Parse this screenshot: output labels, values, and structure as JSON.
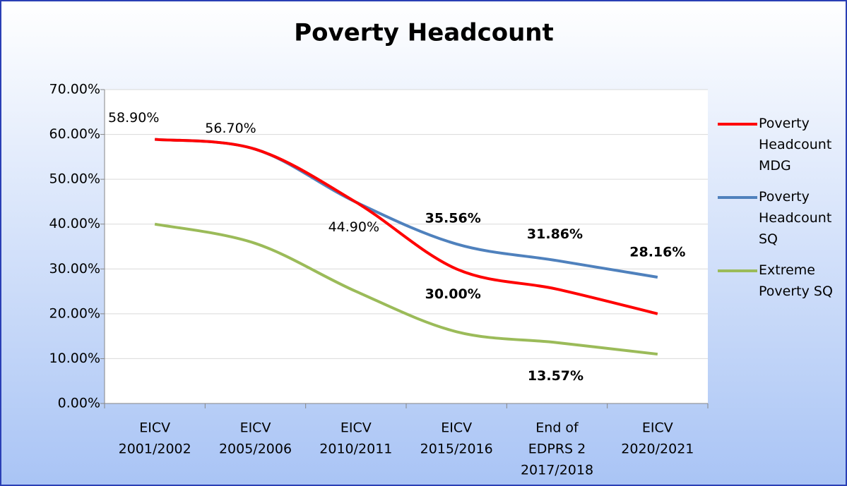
{
  "chart_data": {
    "type": "line",
    "title": "Poverty Headcount",
    "categories": [
      [
        "EICV",
        "2001/2002"
      ],
      [
        "EICV",
        "2005/2006"
      ],
      [
        "EICV",
        "2010/2011"
      ],
      [
        "EICV",
        "2015/2016"
      ],
      [
        "End of",
        "EDPRS 2",
        "2017/2018"
      ],
      [
        "EICV",
        "2020/2021"
      ]
    ],
    "series": [
      {
        "name": "Poverty Headcount MDG",
        "color": "#ff0000",
        "values": [
          58.9,
          56.7,
          44.9,
          30.0,
          25.5,
          20.0
        ],
        "value_labels": [
          "58.90%",
          "56.70%",
          "44.90%",
          "30.00%",
          null,
          null
        ]
      },
      {
        "name": "Poverty Headcount SQ",
        "color": "#4f81bd",
        "values": [
          58.9,
          56.7,
          44.9,
          35.56,
          31.86,
          28.16
        ],
        "value_labels": [
          null,
          null,
          null,
          "35.56%",
          "31.86%",
          "28.16%"
        ]
      },
      {
        "name": "Extreme Poverty SQ",
        "color": "#9bbb59",
        "values": [
          40.0,
          35.7,
          25.0,
          16.0,
          13.57,
          11.0
        ],
        "value_labels": [
          null,
          null,
          null,
          null,
          "13.57%",
          null
        ]
      }
    ],
    "ylim": [
      0,
      70
    ],
    "yticks": [
      {
        "value": 0,
        "label": "0.00%"
      },
      {
        "value": 10,
        "label": "10.00%"
      },
      {
        "value": 20,
        "label": "20.00%"
      },
      {
        "value": 30,
        "label": "30.00%"
      },
      {
        "value": 40,
        "label": "40.00%"
      },
      {
        "value": 50,
        "label": "50.00%"
      },
      {
        "value": 60,
        "label": "60.00%"
      },
      {
        "value": 70,
        "label": "70.00%"
      }
    ],
    "grid": true,
    "smooth": true,
    "legend": "right"
  }
}
